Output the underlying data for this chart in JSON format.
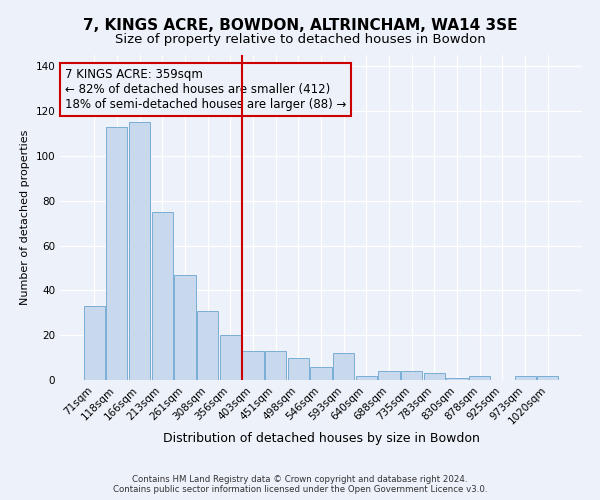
{
  "title": "7, KINGS ACRE, BOWDON, ALTRINCHAM, WA14 3SE",
  "subtitle": "Size of property relative to detached houses in Bowdon",
  "xlabel": "Distribution of detached houses by size in Bowdon",
  "ylabel": "Number of detached properties",
  "bar_labels": [
    "71sqm",
    "118sqm",
    "166sqm",
    "213sqm",
    "261sqm",
    "308sqm",
    "356sqm",
    "403sqm",
    "451sqm",
    "498sqm",
    "546sqm",
    "593sqm",
    "640sqm",
    "688sqm",
    "735sqm",
    "783sqm",
    "830sqm",
    "878sqm",
    "925sqm",
    "973sqm",
    "1020sqm"
  ],
  "bar_values": [
    33,
    113,
    115,
    75,
    47,
    31,
    20,
    13,
    13,
    10,
    6,
    12,
    2,
    4,
    4,
    3,
    1,
    2,
    0,
    2,
    2
  ],
  "bar_color": "#c8d9ee",
  "bar_edge_color": "#7aaed6",
  "vline_color": "#cc0000",
  "annotation_text": "7 KINGS ACRE: 359sqm\n← 82% of detached houses are smaller (412)\n18% of semi-detached houses are larger (88) →",
  "annotation_box_edge_color": "#cc0000",
  "annotation_fontsize": 8.5,
  "ylim": [
    0,
    145
  ],
  "yticks": [
    0,
    20,
    40,
    60,
    80,
    100,
    120,
    140
  ],
  "bg_color": "#edf1f9",
  "footer1": "Contains HM Land Registry data © Crown copyright and database right 2024.",
  "footer2": "Contains public sector information licensed under the Open Government Licence v3.0.",
  "title_fontsize": 11,
  "subtitle_fontsize": 9.5,
  "xlabel_fontsize": 9,
  "ylabel_fontsize": 8,
  "tick_fontsize": 7.5
}
